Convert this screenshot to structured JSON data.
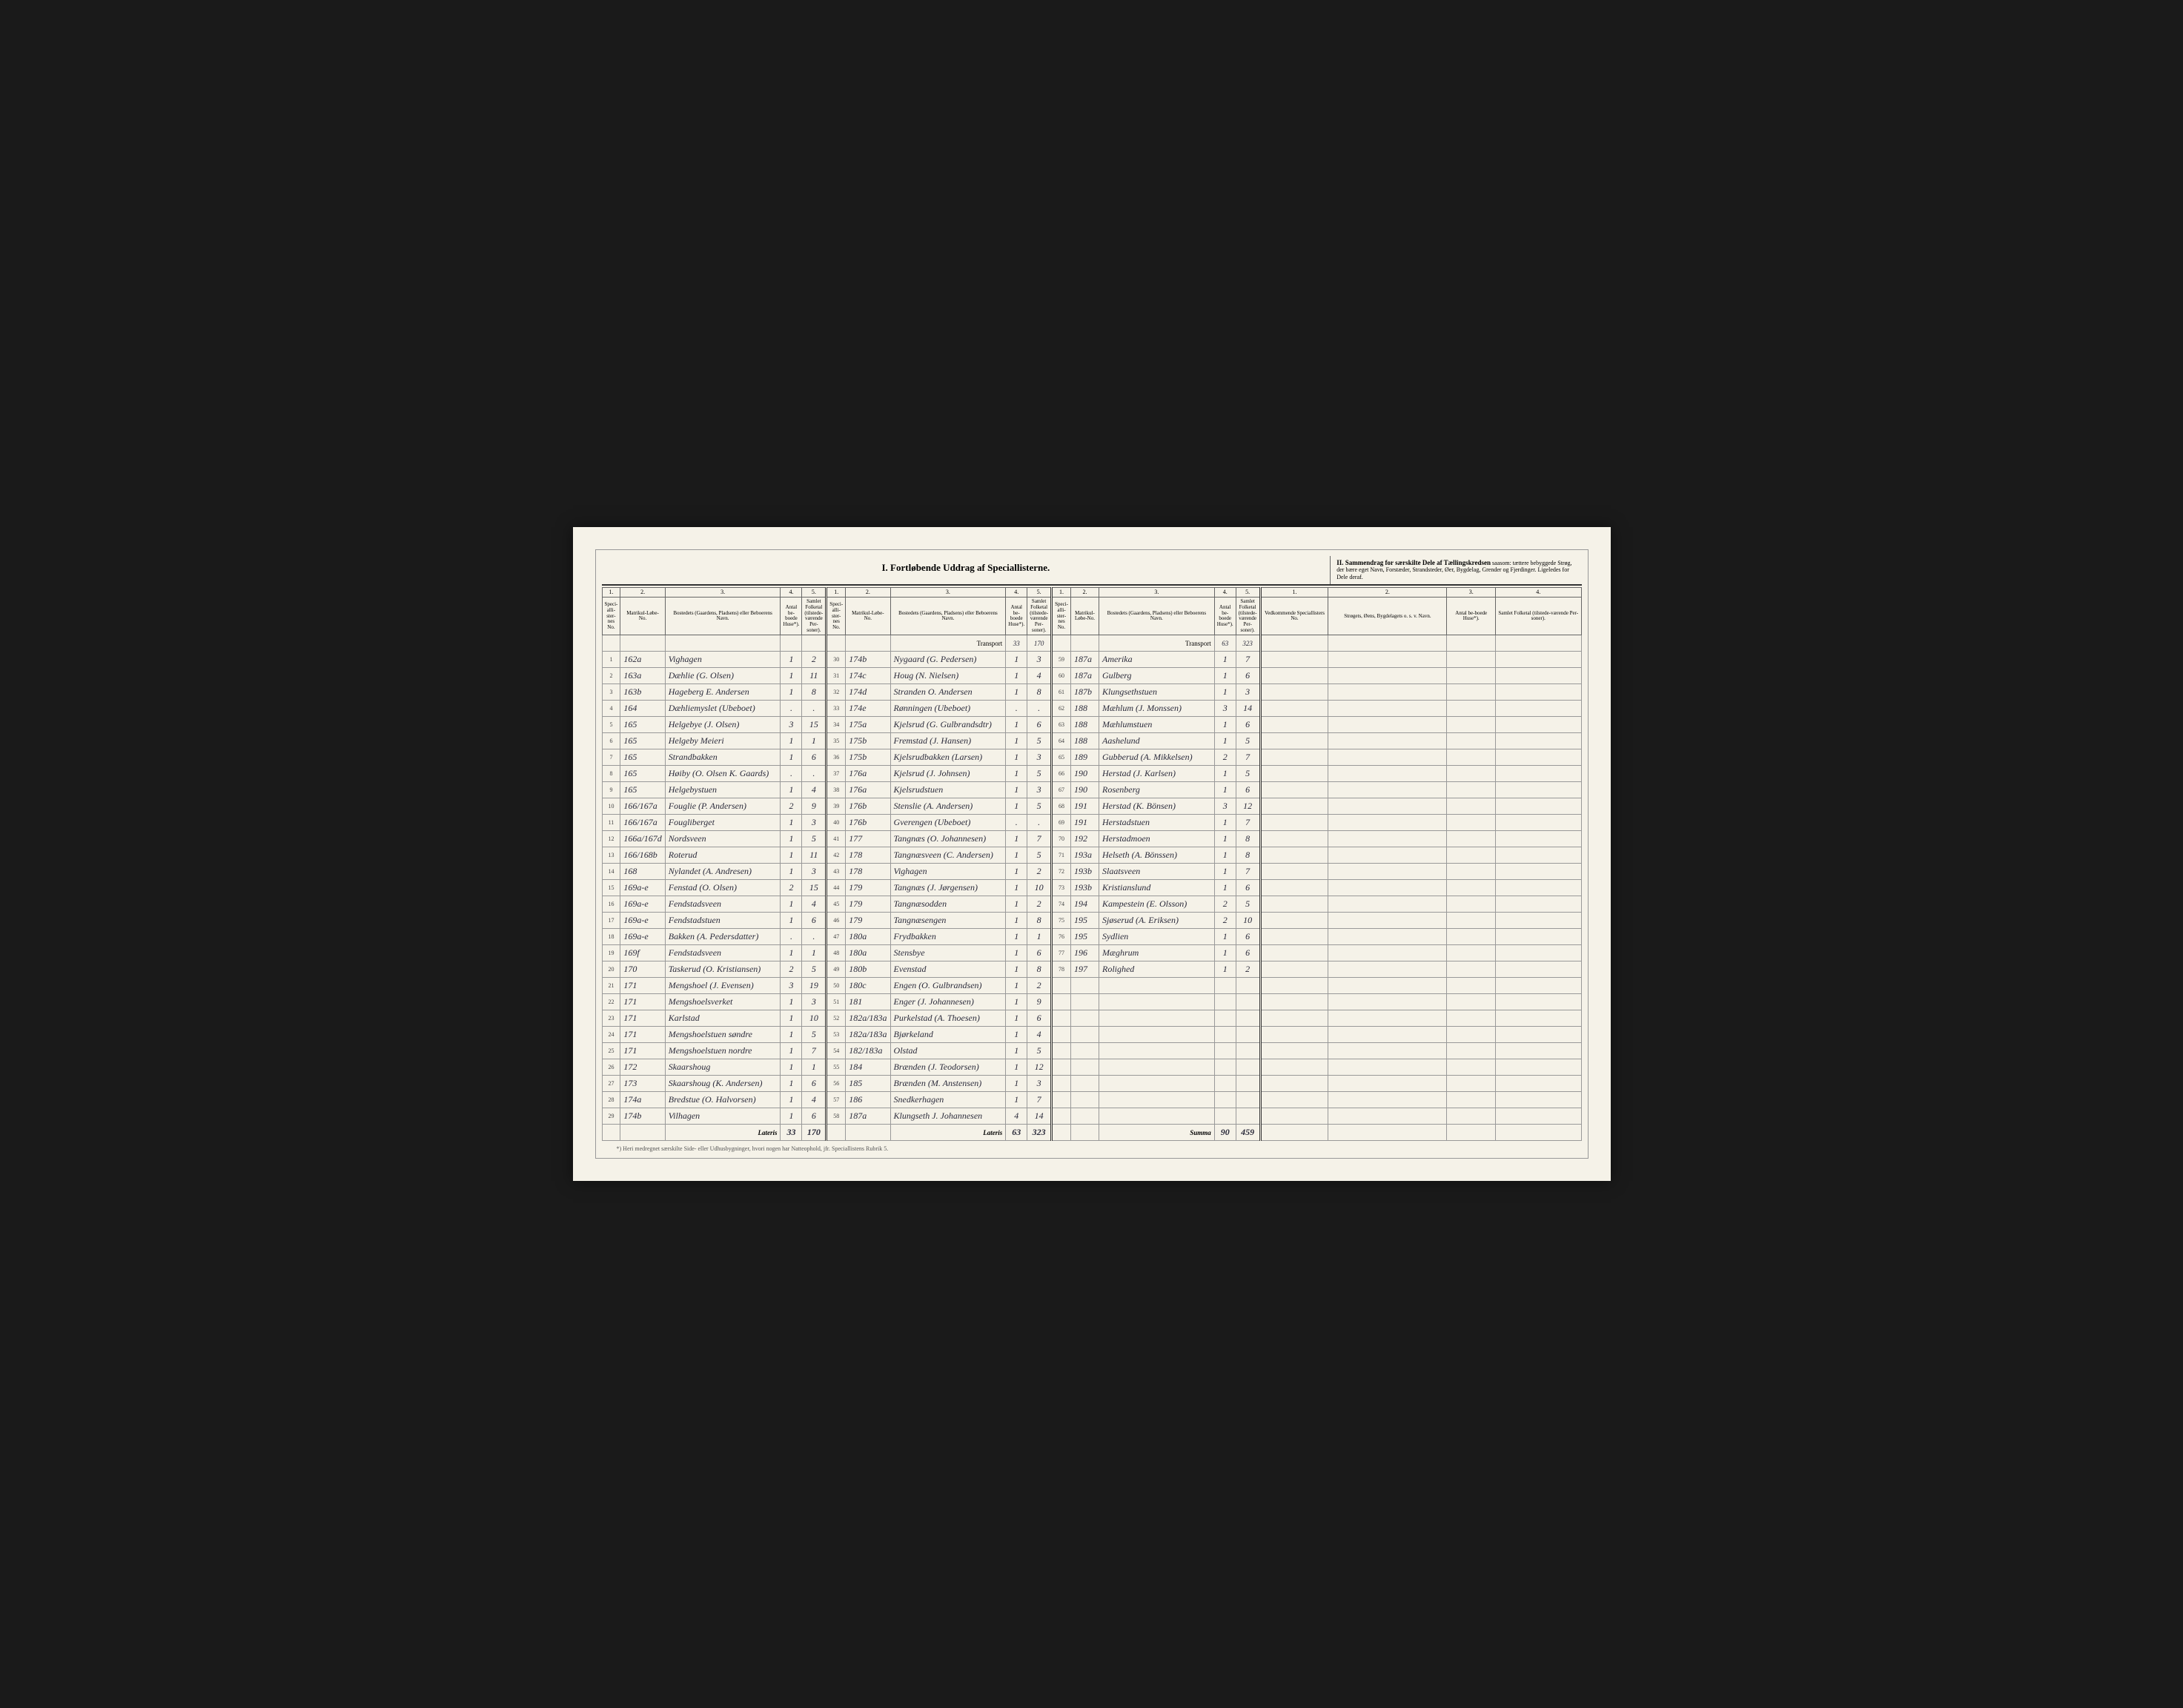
{
  "header": {
    "section1_title": "I. Fortløbende Uddrag af Speciallisterne.",
    "section2_title": "II. Sammendrag for særskilte Dele af Tællingskredsen",
    "section2_sub": "saasom: tættere bebyggede Strøg, der bære eget Navn, Forstæder, Strandsteder, Øer, Bygdelag, Grender og Fjerdinger. Ligeledes for Dele deraf."
  },
  "cols": {
    "c1": "1.",
    "c2": "2.",
    "c3": "3.",
    "c4": "4.",
    "c5": "5.",
    "special": "Speci-alli-ster-nes No.",
    "matrikul": "Matrikul-Løbe-No.",
    "bosted": "Bostedets (Gaardens, Pladsens) eller Beboerens Navn.",
    "antal": "Antal be-boede Huse*).",
    "samlet": "Samlet Folketal (tilstede-værende Per-soner).",
    "vedkom": "Vedkommende Speciallisters No.",
    "stroget": "Strøgets, Øens, Bygdelagets o. s. v. Navn."
  },
  "transport": {
    "label": "Transport",
    "a1": "33",
    "s1": "170",
    "a2": "63",
    "s2": "323"
  },
  "lateris": {
    "label": "Lateris",
    "a1": "33",
    "s1": "170",
    "a2": "63",
    "s2": "323",
    "summa": "Summa",
    "a3": "90",
    "s3": "459"
  },
  "footnote": "*) Heri medregnet særskilte Side- eller Udhusbygninger, hvori nogen har Natteophold, jfr. Speciallistens Rubrik 5.",
  "rows1": [
    {
      "n": "1",
      "m": "162a",
      "b": "Vighagen",
      "a": "1",
      "s": "2"
    },
    {
      "n": "2",
      "m": "163a",
      "b": "Dæhlie (G. Olsen)",
      "a": "1",
      "s": "11"
    },
    {
      "n": "3",
      "m": "163b",
      "b": "Hageberg E. Andersen",
      "a": "1",
      "s": "8"
    },
    {
      "n": "4",
      "m": "164",
      "b": "Dæhliemyslet (Ubeboet)",
      "a": ".",
      "s": "."
    },
    {
      "n": "5",
      "m": "165",
      "b": "Helgebye (J. Olsen)",
      "a": "3",
      "s": "15"
    },
    {
      "n": "6",
      "m": "165",
      "b": "Helgeby Meieri",
      "a": "1",
      "s": "1"
    },
    {
      "n": "7",
      "m": "165",
      "b": "Strandbakken",
      "a": "1",
      "s": "6"
    },
    {
      "n": "8",
      "m": "165",
      "b": "Høiby (O. Olsen K. Gaards)",
      "a": ".",
      "s": "."
    },
    {
      "n": "9",
      "m": "165",
      "b": "Helgebystuen",
      "a": "1",
      "s": "4"
    },
    {
      "n": "10",
      "m": "166/167a",
      "b": "Fouglie (P. Andersen)",
      "a": "2",
      "s": "9"
    },
    {
      "n": "11",
      "m": "166/167a",
      "b": "Fougliberget",
      "a": "1",
      "s": "3"
    },
    {
      "n": "12",
      "m": "166a/167d",
      "b": "Nordsveen",
      "a": "1",
      "s": "5"
    },
    {
      "n": "13",
      "m": "166/168b",
      "b": "Roterud",
      "a": "1",
      "s": "11"
    },
    {
      "n": "14",
      "m": "168",
      "b": "Nylandet (A. Andresen)",
      "a": "1",
      "s": "3"
    },
    {
      "n": "15",
      "m": "169a-e",
      "b": "Fenstad (O. Olsen)",
      "a": "2",
      "s": "15"
    },
    {
      "n": "16",
      "m": "169a-e",
      "b": "Fendstadsveen",
      "a": "1",
      "s": "4"
    },
    {
      "n": "17",
      "m": "169a-e",
      "b": "Fendstadstuen",
      "a": "1",
      "s": "6"
    },
    {
      "n": "18",
      "m": "169a-e",
      "b": "Bakken (A. Pedersdatter)",
      "a": ".",
      "s": "."
    },
    {
      "n": "19",
      "m": "169f",
      "b": "Fendstadsveen",
      "a": "1",
      "s": "1"
    },
    {
      "n": "20",
      "m": "170",
      "b": "Taskerud (O. Kristiansen)",
      "a": "2",
      "s": "5"
    },
    {
      "n": "21",
      "m": "171",
      "b": "Mengshoel (J. Evensen)",
      "a": "3",
      "s": "19"
    },
    {
      "n": "22",
      "m": "171",
      "b": "Mengshoelsverket",
      "a": "1",
      "s": "3"
    },
    {
      "n": "23",
      "m": "171",
      "b": "Karlstad",
      "a": "1",
      "s": "10"
    },
    {
      "n": "24",
      "m": "171",
      "b": "Mengshoelstuen søndre",
      "a": "1",
      "s": "5"
    },
    {
      "n": "25",
      "m": "171",
      "b": "Mengshoelstuen nordre",
      "a": "1",
      "s": "7"
    },
    {
      "n": "26",
      "m": "172",
      "b": "Skaarshoug",
      "a": "1",
      "s": "1"
    },
    {
      "n": "27",
      "m": "173",
      "b": "Skaarshoug (K. Andersen)",
      "a": "1",
      "s": "6"
    },
    {
      "n": "28",
      "m": "174a",
      "b": "Bredstue (O. Halvorsen)",
      "a": "1",
      "s": "4"
    },
    {
      "n": "29",
      "m": "174b",
      "b": "Vilhagen",
      "a": "1",
      "s": "6"
    }
  ],
  "rows2": [
    {
      "n": "30",
      "m": "174b",
      "b": "Nygaard (G. Pedersen)",
      "a": "1",
      "s": "3"
    },
    {
      "n": "31",
      "m": "174c",
      "b": "Houg (N. Nielsen)",
      "a": "1",
      "s": "4"
    },
    {
      "n": "32",
      "m": "174d",
      "b": "Stranden O. Andersen",
      "a": "1",
      "s": "8"
    },
    {
      "n": "33",
      "m": "174e",
      "b": "Rønningen (Ubeboet)",
      "a": ".",
      "s": "."
    },
    {
      "n": "34",
      "m": "175a",
      "b": "Kjelsrud (G. Gulbrandsdtr)",
      "a": "1",
      "s": "6"
    },
    {
      "n": "35",
      "m": "175b",
      "b": "Fremstad (J. Hansen)",
      "a": "1",
      "s": "5"
    },
    {
      "n": "36",
      "m": "175b",
      "b": "Kjelsrudbakken (Larsen)",
      "a": "1",
      "s": "3"
    },
    {
      "n": "37",
      "m": "176a",
      "b": "Kjelsrud (J. Johnsen)",
      "a": "1",
      "s": "5"
    },
    {
      "n": "38",
      "m": "176a",
      "b": "Kjelsrudstuen",
      "a": "1",
      "s": "3"
    },
    {
      "n": "39",
      "m": "176b",
      "b": "Stenslie (A. Andersen)",
      "a": "1",
      "s": "5"
    },
    {
      "n": "40",
      "m": "176b",
      "b": "Gverengen (Ubeboet)",
      "a": ".",
      "s": "."
    },
    {
      "n": "41",
      "m": "177",
      "b": "Tangnæs (O. Johannesen)",
      "a": "1",
      "s": "7"
    },
    {
      "n": "42",
      "m": "178",
      "b": "Tangnæsveen (C. Andersen)",
      "a": "1",
      "s": "5"
    },
    {
      "n": "43",
      "m": "178",
      "b": "Vighagen",
      "a": "1",
      "s": "2"
    },
    {
      "n": "44",
      "m": "179",
      "b": "Tangnæs (J. Jørgensen)",
      "a": "1",
      "s": "10"
    },
    {
      "n": "45",
      "m": "179",
      "b": "Tangnæsodden",
      "a": "1",
      "s": "2"
    },
    {
      "n": "46",
      "m": "179",
      "b": "Tangnæsengen",
      "a": "1",
      "s": "8"
    },
    {
      "n": "47",
      "m": "180a",
      "b": "Frydbakken",
      "a": "1",
      "s": "1"
    },
    {
      "n": "48",
      "m": "180a",
      "b": "Stensbye",
      "a": "1",
      "s": "6"
    },
    {
      "n": "49",
      "m": "180b",
      "b": "Evenstad",
      "a": "1",
      "s": "8"
    },
    {
      "n": "50",
      "m": "180c",
      "b": "Engen (O. Gulbrandsen)",
      "a": "1",
      "s": "2"
    },
    {
      "n": "51",
      "m": "181",
      "b": "Enger (J. Johannesen)",
      "a": "1",
      "s": "9"
    },
    {
      "n": "52",
      "m": "182a/183a",
      "b": "Purkelstad (A. Thoesen)",
      "a": "1",
      "s": "6"
    },
    {
      "n": "53",
      "m": "182a/183a",
      "b": "Bjørkeland",
      "a": "1",
      "s": "4"
    },
    {
      "n": "54",
      "m": "182/183a",
      "b": "Olstad",
      "a": "1",
      "s": "5"
    },
    {
      "n": "55",
      "m": "184",
      "b": "Brænden (J. Teodorsen)",
      "a": "1",
      "s": "12"
    },
    {
      "n": "56",
      "m": "185",
      "b": "Brænden (M. Anstensen)",
      "a": "1",
      "s": "3"
    },
    {
      "n": "57",
      "m": "186",
      "b": "Snedkerhagen",
      "a": "1",
      "s": "7"
    },
    {
      "n": "58",
      "m": "187a",
      "b": "Klungseth J. Johannesen",
      "a": "4",
      "s": "14"
    }
  ],
  "rows3": [
    {
      "n": "59",
      "m": "187a",
      "b": "Amerika",
      "a": "1",
      "s": "7"
    },
    {
      "n": "60",
      "m": "187a",
      "b": "Gulberg",
      "a": "1",
      "s": "6"
    },
    {
      "n": "61",
      "m": "187b",
      "b": "Klungsethstuen",
      "a": "1",
      "s": "3"
    },
    {
      "n": "62",
      "m": "188",
      "b": "Mæhlum (J. Monssen)",
      "a": "3",
      "s": "14"
    },
    {
      "n": "63",
      "m": "188",
      "b": "Mæhlumstuen",
      "a": "1",
      "s": "6"
    },
    {
      "n": "64",
      "m": "188",
      "b": "Aashelund",
      "a": "1",
      "s": "5"
    },
    {
      "n": "65",
      "m": "189",
      "b": "Gubberud (A. Mikkelsen)",
      "a": "2",
      "s": "7"
    },
    {
      "n": "66",
      "m": "190",
      "b": "Herstad (J. Karlsen)",
      "a": "1",
      "s": "5"
    },
    {
      "n": "67",
      "m": "190",
      "b": "Rosenberg",
      "a": "1",
      "s": "6"
    },
    {
      "n": "68",
      "m": "191",
      "b": "Herstad (K. Bönsen)",
      "a": "3",
      "s": "12"
    },
    {
      "n": "69",
      "m": "191",
      "b": "Herstadstuen",
      "a": "1",
      "s": "7"
    },
    {
      "n": "70",
      "m": "192",
      "b": "Herstadmoen",
      "a": "1",
      "s": "8"
    },
    {
      "n": "71",
      "m": "193a",
      "b": "Helseth (A. Bönssen)",
      "a": "1",
      "s": "8"
    },
    {
      "n": "72",
      "m": "193b",
      "b": "Slaatsveen",
      "a": "1",
      "s": "7"
    },
    {
      "n": "73",
      "m": "193b",
      "b": "Kristianslund",
      "a": "1",
      "s": "6"
    },
    {
      "n": "74",
      "m": "194",
      "b": "Kampestein (E. Olsson)",
      "a": "2",
      "s": "5"
    },
    {
      "n": "75",
      "m": "195",
      "b": "Sjøserud (A. Eriksen)",
      "a": "2",
      "s": "10"
    },
    {
      "n": "76",
      "m": "195",
      "b": "Sydlien",
      "a": "1",
      "s": "6"
    },
    {
      "n": "77",
      "m": "196",
      "b": "Mæghrum",
      "a": "1",
      "s": "6"
    },
    {
      "n": "78",
      "m": "197",
      "b": "Rolighed",
      "a": "1",
      "s": "2"
    }
  ]
}
